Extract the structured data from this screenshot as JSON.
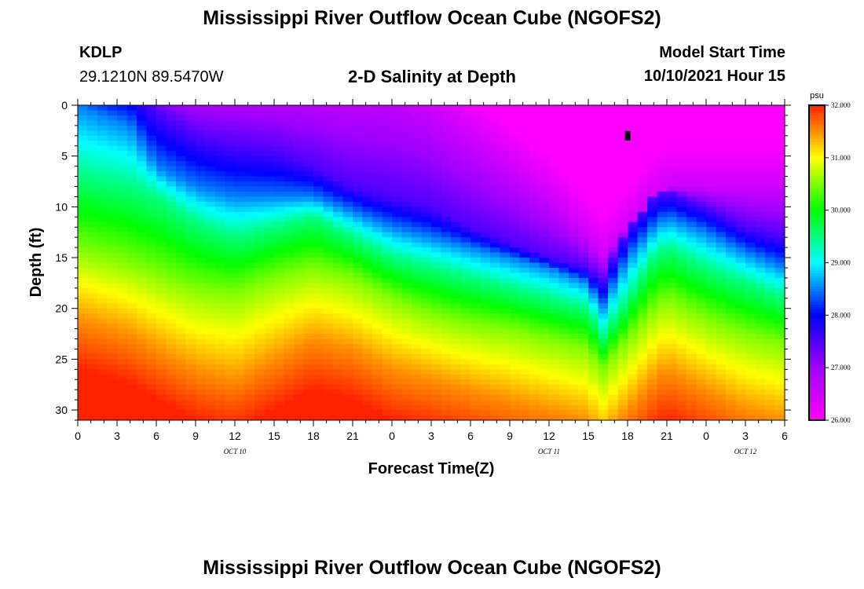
{
  "header": {
    "title": "Mississippi River Outflow Ocean Cube (NGOFS2)",
    "station_id": "KDLP",
    "station_coords": "29.1210N  89.5470W",
    "subtitle": "2-D Salinity at Depth",
    "model_start_label": "Model Start Time",
    "model_start_value": "10/10/2021 Hour 15"
  },
  "footer": {
    "title": "Mississippi River Outflow Ocean Cube (NGOFS2)"
  },
  "chart_data": {
    "type": "heatmap",
    "title": "2-D Salinity at Depth",
    "xlabel": "Forecast Time(Z)",
    "ylabel": "Depth (ft)",
    "xlim": [
      0,
      54
    ],
    "ylim": [
      31,
      0
    ],
    "x_tick_values": [
      0,
      3,
      6,
      9,
      12,
      15,
      18,
      21,
      24,
      27,
      30,
      33,
      36,
      39,
      42,
      45,
      48,
      51,
      54
    ],
    "x_tick_labels": [
      "0",
      "3",
      "6",
      "9",
      "12",
      "15",
      "18",
      "21",
      "0",
      "3",
      "6",
      "9",
      "12",
      "15",
      "18",
      "21",
      "0",
      "3",
      "6"
    ],
    "date_labels": [
      {
        "x": 12,
        "text": "OCT 10"
      },
      {
        "x": 36,
        "text": "OCT 11"
      },
      {
        "x": 51,
        "text": "OCT 12"
      }
    ],
    "y_tick_values": [
      0,
      5,
      10,
      15,
      20,
      25,
      30
    ],
    "y_tick_labels": [
      "0",
      "5",
      "10",
      "15",
      "20",
      "25",
      "30"
    ],
    "colorbar": {
      "unit": "psu",
      "min": 26.0,
      "max": 32.0,
      "tick_values": [
        26,
        27,
        28,
        29,
        30,
        31,
        32
      ],
      "tick_labels": [
        "26.000",
        "27.000",
        "28.000",
        "29.000",
        "30.000",
        "31.000",
        "32.000"
      ],
      "colors": [
        "#ff00ff",
        "#a000ff",
        "#0000ff",
        "#00ffff",
        "#00ff00",
        "#ffff00",
        "#ff2200"
      ]
    },
    "current_time_marker": {
      "x": 42,
      "depth": 3
    },
    "salinity_profile": {
      "description_units": "depth of isohaline contours (ft) at each forecast hour",
      "x": [
        0,
        4,
        6,
        9,
        12,
        15,
        18,
        21,
        24,
        27,
        30,
        33,
        36,
        39,
        40,
        42,
        44,
        45,
        48,
        51,
        54
      ],
      "contours": [
        {
          "salinity": 26.5,
          "depth": [
            -2,
            -2,
            -2,
            -2,
            -2,
            -2,
            -2,
            -2,
            -2,
            0,
            3,
            6,
            9,
            13,
            15,
            12,
            9,
            8,
            8,
            8,
            8
          ]
        },
        {
          "salinity": 27.5,
          "depth": [
            -2,
            -2,
            0.5,
            3,
            4,
            4.5,
            6,
            8,
            9,
            10,
            12,
            13.5,
            15,
            16,
            17.5,
            12,
            9,
            8.5,
            10,
            12,
            13
          ]
        },
        {
          "salinity": 28.5,
          "depth": [
            0,
            2,
            6,
            8,
            9,
            9,
            9,
            10.5,
            12,
            13,
            14,
            15,
            16,
            17.5,
            20,
            15,
            12,
            11,
            12.5,
            14.5,
            16
          ]
        },
        {
          "salinity": 29.5,
          "depth": [
            7,
            8,
            9,
            11.5,
            13,
            12,
            11,
            13,
            15,
            16,
            17,
            18,
            19,
            20,
            23,
            19,
            15,
            14,
            16,
            17.5,
            19
          ]
        },
        {
          "salinity": 30.5,
          "depth": [
            14,
            15.5,
            16.5,
            18,
            18.5,
            17,
            16,
            17,
            19,
            20.5,
            21.5,
            22,
            23,
            24,
            26,
            23,
            20,
            19,
            21,
            22.5,
            23.5
          ]
        },
        {
          "salinity": 31.5,
          "depth": [
            21,
            22.5,
            24,
            26,
            27,
            25,
            23,
            24,
            26,
            27,
            28,
            29,
            30,
            31,
            33,
            30,
            27,
            26,
            28,
            30,
            31
          ]
        }
      ]
    }
  }
}
